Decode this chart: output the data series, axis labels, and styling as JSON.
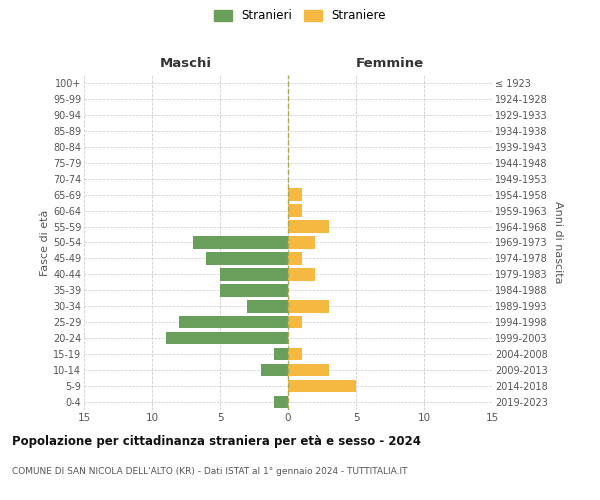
{
  "age_groups": [
    "0-4",
    "5-9",
    "10-14",
    "15-19",
    "20-24",
    "25-29",
    "30-34",
    "35-39",
    "40-44",
    "45-49",
    "50-54",
    "55-59",
    "60-64",
    "65-69",
    "70-74",
    "75-79",
    "80-84",
    "85-89",
    "90-94",
    "95-99",
    "100+"
  ],
  "birth_years": [
    "2019-2023",
    "2014-2018",
    "2009-2013",
    "2004-2008",
    "1999-2003",
    "1994-1998",
    "1989-1993",
    "1984-1988",
    "1979-1983",
    "1974-1978",
    "1969-1973",
    "1964-1968",
    "1959-1963",
    "1954-1958",
    "1949-1953",
    "1944-1948",
    "1939-1943",
    "1934-1938",
    "1929-1933",
    "1924-1928",
    "≤ 1923"
  ],
  "males": [
    1,
    0,
    2,
    1,
    9,
    8,
    3,
    5,
    5,
    6,
    7,
    0,
    0,
    0,
    0,
    0,
    0,
    0,
    0,
    0,
    0
  ],
  "females": [
    0,
    5,
    3,
    1,
    0,
    1,
    3,
    0,
    2,
    1,
    2,
    3,
    1,
    1,
    0,
    0,
    0,
    0,
    0,
    0,
    0
  ],
  "male_color": "#6a9e5b",
  "female_color": "#f5b942",
  "male_label": "Stranieri",
  "female_label": "Straniere",
  "title": "Popolazione per cittadinanza straniera per età e sesso - 2024",
  "subtitle": "COMUNE DI SAN NICOLA DELL'ALTO (KR) - Dati ISTAT al 1° gennaio 2024 - TUTTITALIA.IT",
  "ylabel_left": "Fasce di età",
  "ylabel_right": "Anni di nascita",
  "xlabel_left": "Maschi",
  "xlabel_right": "Femmine",
  "xlim": 15,
  "background_color": "#ffffff",
  "grid_color": "#cccccc",
  "bar_height": 0.78
}
